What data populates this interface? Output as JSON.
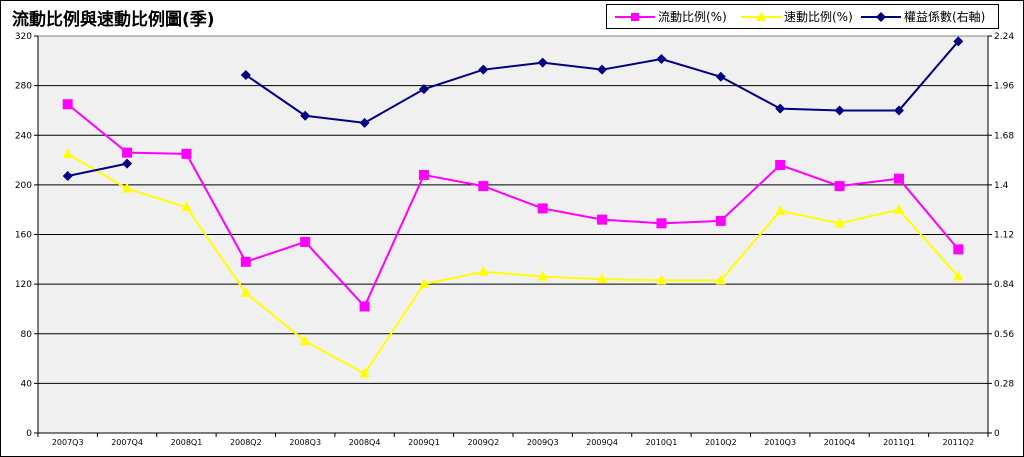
{
  "title": "流動比例與速動比例圖(季)",
  "chart_data": {
    "type": "line",
    "title": "流動比例與速動比例圖(季)",
    "categories": [
      "2007Q3",
      "2007Q4",
      "2008Q1",
      "2008Q2",
      "2008Q3",
      "2008Q4",
      "2009Q1",
      "2009Q2",
      "2009Q3",
      "2009Q4",
      "2010Q1",
      "2010Q2",
      "2010Q3",
      "2010Q4",
      "2011Q1",
      "2011Q2"
    ],
    "left_axis": {
      "min": 0,
      "max": 320,
      "ticks": [
        "0",
        "40",
        "80",
        "120",
        "160",
        "200",
        "240",
        "280",
        "320"
      ]
    },
    "right_axis": {
      "min": 0,
      "max": 2.24,
      "ticks": [
        "0",
        "0.28",
        "0.56",
        "0.84",
        "1.12",
        "1.4",
        "1.68",
        "1.96",
        "2.24"
      ]
    },
    "grid": true,
    "legend_position": "top-right",
    "series": [
      {
        "name": "流動比例(%)",
        "axis": "left",
        "color": "#ff00ff",
        "marker": "square",
        "values": [
          265,
          226,
          225,
          138,
          154,
          102,
          208,
          199,
          181,
          172,
          169,
          171,
          216,
          199,
          205,
          148
        ]
      },
      {
        "name": "速動比例(%)",
        "axis": "left",
        "color": "#ffff00",
        "marker": "triangle",
        "values": [
          225,
          197,
          182,
          113,
          74,
          48,
          120,
          130,
          126,
          124,
          123,
          123,
          179,
          169,
          180,
          126
        ]
      },
      {
        "name": "權益係數(右軸)",
        "axis": "right",
        "color": "#000080",
        "marker": "diamond",
        "segments_break_after": [
          1
        ],
        "values": [
          1.45,
          1.52,
          null,
          2.02,
          1.79,
          1.75,
          1.94,
          2.05,
          2.09,
          2.05,
          2.11,
          2.01,
          1.83,
          1.82,
          1.82,
          2.21
        ]
      }
    ]
  }
}
